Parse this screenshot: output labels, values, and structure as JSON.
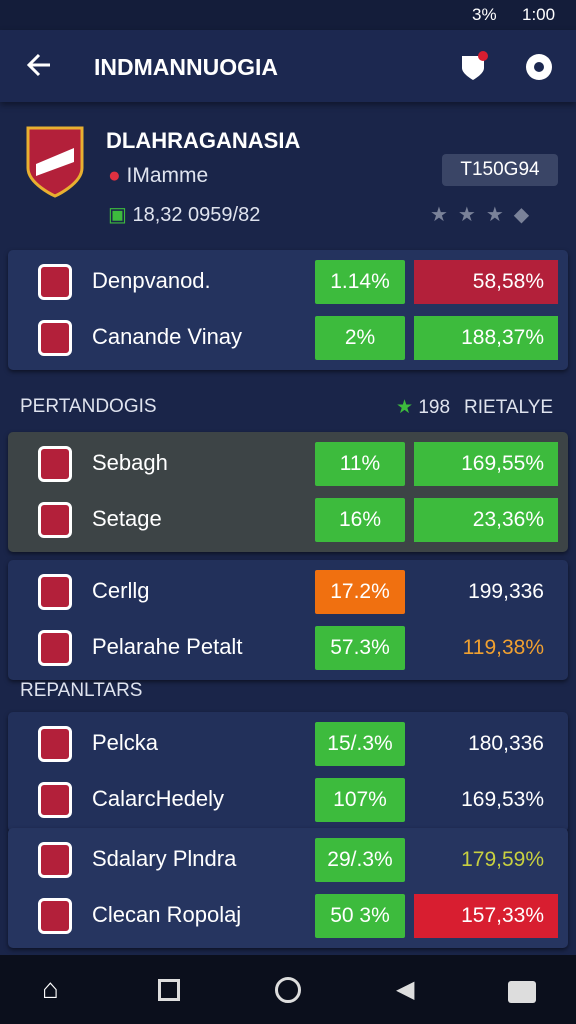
{
  "status_bar": {
    "battery": "3%",
    "time": "1:00"
  },
  "app_bar": {
    "title": "INDMANNUOGIA"
  },
  "header": {
    "name": "DLAHRAGANASIA",
    "location": "IMamme",
    "info": "18,32 0959/82",
    "badge": "T150G94"
  },
  "sections": [
    {
      "label": null,
      "right": null,
      "cards": [
        {
          "bg": "#24335e",
          "rows": [
            {
              "name": "Denpvanod.",
              "pct": "1.14%",
              "value": "58,58%",
              "pct_bg": "#3dbb3d",
              "value_bg": "#b3203a",
              "value_color": "#ffffff"
            },
            {
              "name": "Canande Vinay",
              "pct": "2%",
              "value": "188,37%",
              "pct_bg": "#3dbb3d",
              "value_bg": "#3dbb3d",
              "value_color": "#ffffff"
            }
          ]
        }
      ]
    },
    {
      "label": "PERTANDOGIS",
      "right": [
        "198",
        "RIETALYE"
      ],
      "cards": [
        {
          "bg": "#3d4446",
          "rows": [
            {
              "name": "Sebagh",
              "pct": "11%",
              "value": "169,55%",
              "pct_bg": "#3dbb3d",
              "value_bg": "#3dbb3d",
              "value_color": "#ffffff"
            },
            {
              "name": "Setage",
              "pct": "16%",
              "value": "23,36%",
              "pct_bg": "#3dbb3d",
              "value_bg": "#3dbb3d",
              "value_color": "#ffffff"
            }
          ]
        },
        {
          "bg": "#22305a",
          "rows": [
            {
              "name": "Cerllg",
              "pct": "17.2%",
              "value": "199,336",
              "pct_bg": "#f07010",
              "value_bg": null,
              "value_color": "#ffffff"
            },
            {
              "name": "Pelarahe Petalt",
              "pct": "57.3%",
              "value": "119,38%",
              "pct_bg": "#3dbb3d",
              "value_bg": null,
              "value_color": "#f0a030"
            }
          ]
        }
      ]
    },
    {
      "label": "REPANLTARS",
      "right": null,
      "cards": [
        {
          "bg": "#22305a",
          "rows": [
            {
              "name": "Pelcka",
              "pct": "15/.3%",
              "value": "180,336",
              "pct_bg": "#3dbb3d",
              "value_bg": null,
              "value_color": "#ffffff"
            },
            {
              "name": "CalarcHedely",
              "pct": "107%",
              "value": "169,53%",
              "pct_bg": "#3dbb3d",
              "value_bg": null,
              "value_color": "#ffffff"
            }
          ]
        },
        {
          "bg": "#263560",
          "rows": [
            {
              "name": "Sdalary Plndra",
              "pct": "29/.3%",
              "value": "179,59%",
              "pct_bg": "#3dbb3d",
              "value_bg": null,
              "value_color": "#c8d040"
            },
            {
              "name": "Clecan Ropolaj",
              "pct": "50 3%",
              "value": "157,33%",
              "pct_bg": "#3dbb3d",
              "value_bg": "#d81e30",
              "value_color": "#ffffff"
            }
          ]
        }
      ]
    }
  ]
}
